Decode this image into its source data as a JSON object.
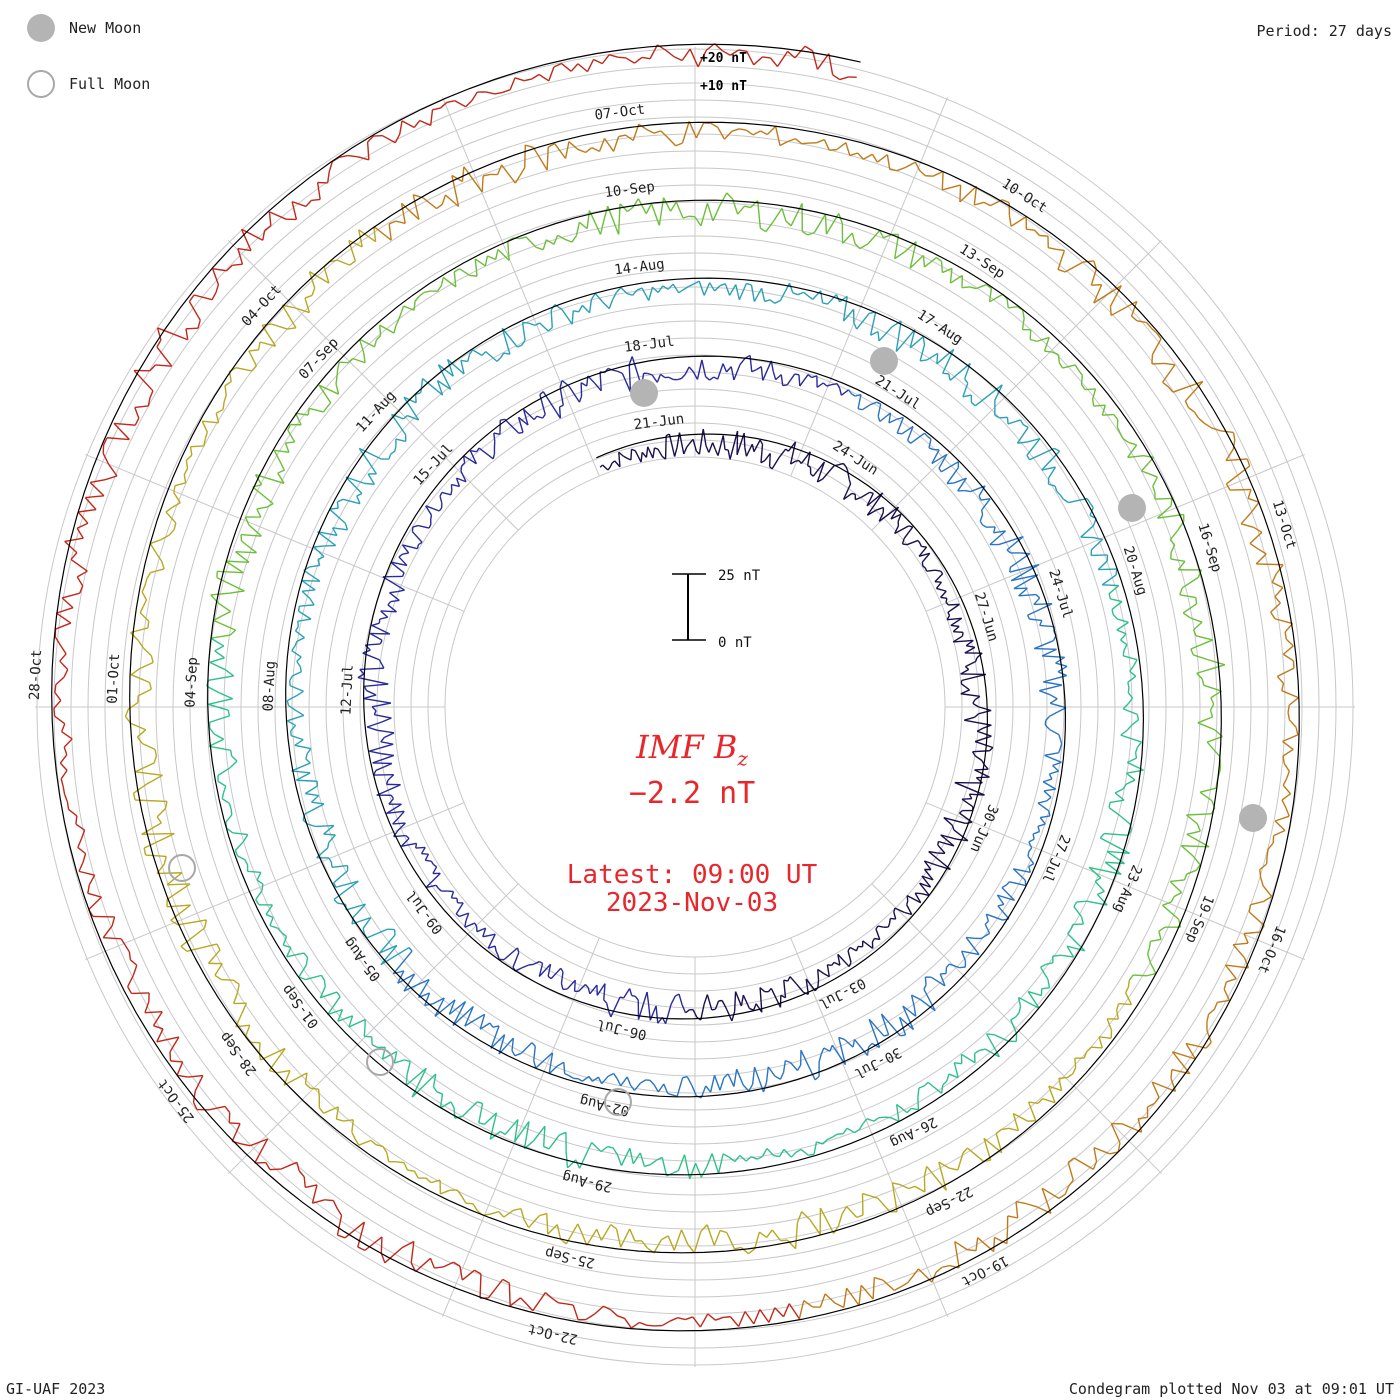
{
  "header": {
    "period_label": "Period: 27 days",
    "legend": [
      {
        "label": "New Moon",
        "type": "new"
      },
      {
        "label": "Full Moon",
        "type": "full"
      }
    ]
  },
  "footer": {
    "credit": "GI-UAF 2023",
    "plotted": "Condegram plotted Nov 03 at 09:01 UT"
  },
  "center": {
    "quantity_prefix": "IMF B",
    "quantity_subscript": "z",
    "value": "−2.2 nT",
    "latest_line1": "Latest: 09:00 UT",
    "latest_line2": "2023-Nov-03"
  },
  "chart_data": {
    "type": "line",
    "title": "IMF Bz",
    "period_days": 27,
    "scale_bar": {
      "top_label": "25 nT",
      "bottom_label": "0 nT"
    },
    "ring_labels": [
      "+20 nT",
      "+10 nT"
    ],
    "colors": {
      "rotation_1": "#1c0f4c",
      "rotation_2": "#2a2a9c",
      "rotation_3": "#2aa0b8",
      "rotation_4": "#6cbf3a",
      "rotation_5": "#b9a820",
      "rotation_6": "#c0281a",
      "label_red": "#e8262b",
      "moon_grey": "#b4b4b4"
    },
    "series": [
      {
        "color": "#1c0f4c",
        "date_labels": [
          "21-Jun",
          "24-Jun",
          "27-Jun",
          "30-Jun",
          "03-Jul",
          "06-Jul",
          "09-Jul",
          "12-Jul",
          "15-Jul"
        ]
      },
      {
        "color": "#2a2a9c",
        "date_labels": [
          "18-Jul",
          "21-Jul",
          "24-Jul",
          "27-Jul",
          "30-Jul",
          "02-Aug",
          "05-Aug",
          "08-Aug",
          "11-Aug"
        ]
      },
      {
        "color": "#2aa0b8",
        "date_labels": [
          "14-Aug",
          "17-Aug",
          "20-Aug",
          "23-Aug",
          "26-Aug",
          "29-Aug",
          "01-Sep",
          "04-Sep",
          "07-Sep"
        ]
      },
      {
        "color": "#6cbf3a",
        "date_labels": [
          "10-Sep",
          "13-Sep",
          "16-Sep",
          "19-Sep",
          "22-Sep",
          "25-Sep",
          "28-Sep",
          "01-Oct",
          "04-Oct"
        ]
      },
      {
        "color": "#b9a820",
        "date_labels": [
          "07-Oct",
          "10-Oct",
          "13-Oct",
          "16-Oct",
          "19-Oct",
          "22-Oct",
          "25-Oct",
          "28-Oct"
        ]
      }
    ],
    "latest_value_nT": -2.2,
    "latest_time": "09:00 UT",
    "latest_date": "2023-Nov-03"
  }
}
